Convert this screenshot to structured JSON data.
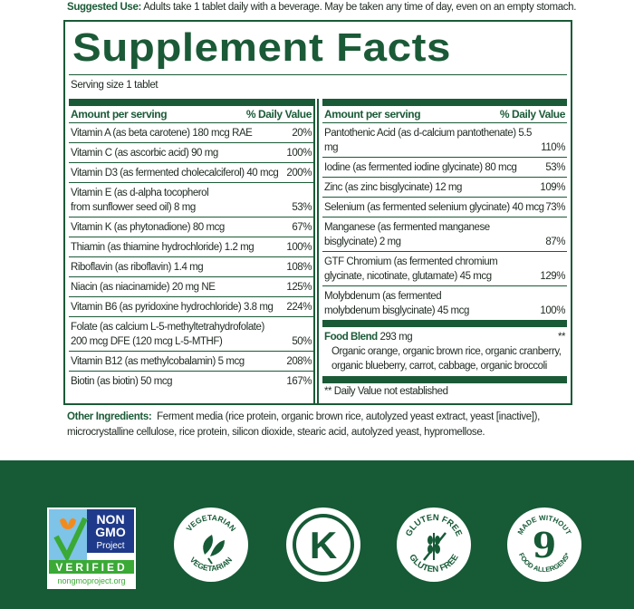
{
  "suggested_use": {
    "label": "Suggested Use:",
    "text": "Adults take 1 tablet daily with a beverage. May be taken any time of day, even on an empty stomach."
  },
  "title": "Supplement Facts",
  "serving_size": "Serving size 1 tablet",
  "headers": {
    "amount": "Amount per serving",
    "dv": "% Daily Value"
  },
  "left_rows": [
    {
      "name": "Vitamin A (as beta carotene) 180 mcg RAE",
      "dv": "20%"
    },
    {
      "name": "Vitamin C (as ascorbic acid) 90 mg",
      "dv": "100%"
    },
    {
      "name": "Vitamin D3 (as fermented cholecalciferol) 40 mcg",
      "dv": "200%"
    },
    {
      "name": "Vitamin E (as d-alpha tocopherol\nfrom sunflower seed oil) 8 mg",
      "dv": "53%"
    },
    {
      "name": "Vitamin K (as phytonadione) 80 mcg",
      "dv": "67%"
    },
    {
      "name": "Thiamin (as thiamine hydrochloride) 1.2 mg",
      "dv": "100%"
    },
    {
      "name": "Riboflavin (as riboflavin) 1.4 mg",
      "dv": "108%"
    },
    {
      "name": "Niacin (as niacinamide) 20 mg NE",
      "dv": "125%"
    },
    {
      "name": "Vitamin B6 (as pyridoxine hydrochloride) 3.8 mg",
      "dv": "224%"
    },
    {
      "name": "Folate (as calcium L-5-methyltetrahydrofolate)\n200 mcg DFE (120 mcg L-5-MTHF)",
      "dv": "50%"
    },
    {
      "name": "Vitamin B12 (as methylcobalamin) 5 mcg",
      "dv": "208%"
    },
    {
      "name": "Biotin (as biotin) 50 mcg",
      "dv": "167%"
    }
  ],
  "right_rows": [
    {
      "name": "Pantothenic Acid (as d-calcium pantothenate) 5.5 mg",
      "dv": "110%"
    },
    {
      "name": "Iodine (as fermented iodine glycinate) 80 mcg",
      "dv": "53%"
    },
    {
      "name": "Zinc (as zinc bisglycinate) 12 mg",
      "dv": "109%"
    },
    {
      "name": "Selenium (as fermented selenium glycinate) 40 mcg",
      "dv": "73%"
    },
    {
      "name": "Manganese (as fermented manganese\nbisglycinate) 2 mg",
      "dv": "87%"
    },
    {
      "name": "GTF Chromium (as fermented chromium\nglycinate, nicotinate, glutamate) 45 mcg",
      "dv": "129%"
    },
    {
      "name": "Molybdenum (as fermented\nmolybdenum bisglycinate) 45 mcg",
      "dv": "100%"
    }
  ],
  "food_blend": {
    "label": "Food Blend",
    "amount": "293 mg",
    "dv": "**",
    "ingredients": "Organic orange, organic brown rice, organic cranberry,\norganic blueberry, carrot, cabbage, organic broccoli"
  },
  "footnote": "** Daily Value not established",
  "other_ingredients": {
    "label": "Other Ingredients:",
    "text": "Ferment media (rice protein, organic brown rice, autolyzed yeast extract, yeast [inactive]), microcrystalline cellulose, rice protein, silicon dioxide, stearic acid, autolyzed yeast, hypromellose."
  },
  "badges": {
    "non_gmo": {
      "line1": "NON",
      "line2": "GMO",
      "line3": "Project",
      "verified": "VERIFIED",
      "url": "nongmoproject.org"
    },
    "vegetarian": "VEGETARIAN",
    "kosher": "K",
    "gluten_free": "GLUTEN FREE",
    "allergens": {
      "top": "MADE WITHOUT",
      "number": "9",
      "bottom": "FOOD ALLERGENS*"
    }
  },
  "colors": {
    "brand_green": "#1b5a37",
    "footer_green": "#165a36"
  }
}
